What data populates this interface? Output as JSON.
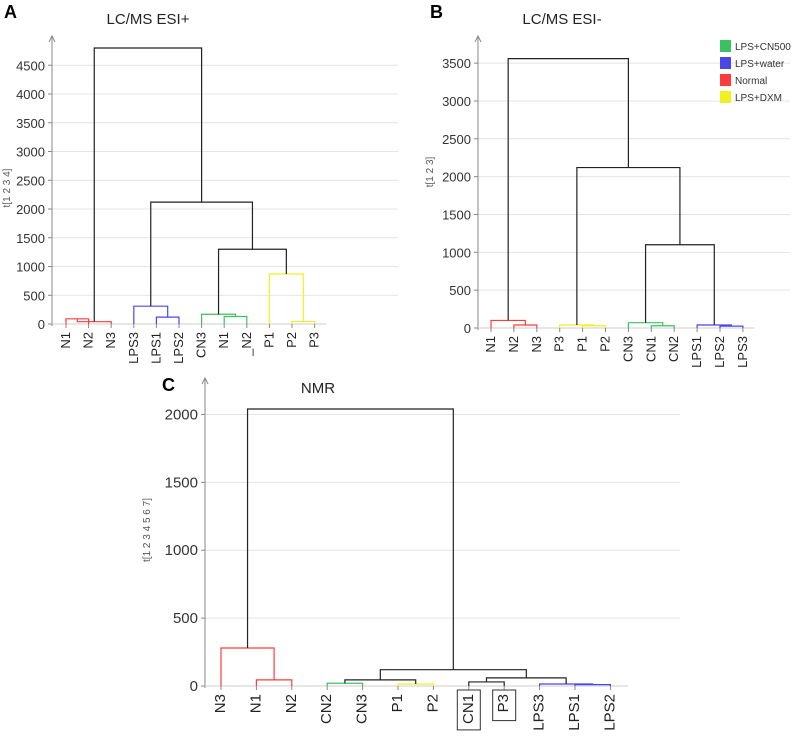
{
  "colors": {
    "Normal": "#ff3b3b",
    "LPS+water": "#4848e8",
    "LPS+CN500": "#3cc060",
    "LPS+DXM": "#f0f020",
    "link": "#222222",
    "grid": "#e4e4e4",
    "axis": "#888888"
  },
  "chart_data": [
    {
      "type": "dendrogram",
      "panel": "A",
      "title": "LC/MS ESI+",
      "ylabel": "t[1 2 3 4]",
      "ylim": [
        0,
        4800
      ],
      "yticks": [
        0,
        500,
        1000,
        1500,
        2000,
        2500,
        3000,
        3500,
        4000,
        4500
      ],
      "leaves": [
        "N1",
        "N2",
        "N3",
        "LPS3",
        "LPS1",
        "LPS2",
        "CN3",
        "N1",
        "_N2",
        "P1",
        "P2",
        "P3"
      ],
      "merges": [
        {
          "a": 0,
          "b": 1,
          "h": 90,
          "color": "Normal"
        },
        {
          "a": 12,
          "b": 2,
          "h": 40,
          "color": "Normal"
        },
        {
          "a": 4,
          "b": 5,
          "h": 120,
          "color": "LPS+water"
        },
        {
          "a": 3,
          "b": 14,
          "h": 310,
          "color": "LPS+water"
        },
        {
          "a": 7,
          "b": 8,
          "h": 130,
          "color": "LPS+CN500"
        },
        {
          "a": 6,
          "b": 16,
          "h": 170,
          "color": "LPS+CN500"
        },
        {
          "a": 10,
          "b": 11,
          "h": 45,
          "color": "LPS+DXM"
        },
        {
          "a": 9,
          "b": 18,
          "h": 870,
          "color": "LPS+DXM"
        },
        {
          "a": 17,
          "b": 19,
          "h": 1300,
          "color": "link"
        },
        {
          "a": 15,
          "b": 20,
          "h": 2120,
          "color": "link"
        },
        {
          "a": 13,
          "b": 21,
          "h": 4800,
          "color": "link"
        }
      ]
    },
    {
      "type": "dendrogram",
      "panel": "B",
      "title": "LC/MS ESI-",
      "ylabel": "t[1 2 3]",
      "ylim": [
        0,
        3700
      ],
      "yticks": [
        0,
        500,
        1000,
        1500,
        2000,
        2500,
        3000,
        3500
      ],
      "leaves": [
        "N1",
        "N2",
        "N3",
        "P3",
        "P1",
        "P2",
        "CN3",
        "CN1",
        "CN2",
        "LPS1",
        "LPS2",
        "LPS3"
      ],
      "merges": [
        {
          "a": 1,
          "b": 2,
          "h": 40,
          "color": "Normal"
        },
        {
          "a": 0,
          "b": 12,
          "h": 100,
          "color": "Normal"
        },
        {
          "a": 4,
          "b": 5,
          "h": 30,
          "color": "LPS+DXM"
        },
        {
          "a": 3,
          "b": 14,
          "h": 40,
          "color": "LPS+DXM"
        },
        {
          "a": 7,
          "b": 8,
          "h": 30,
          "color": "LPS+CN500"
        },
        {
          "a": 6,
          "b": 16,
          "h": 70,
          "color": "LPS+CN500"
        },
        {
          "a": 10,
          "b": 11,
          "h": 25,
          "color": "LPS+water"
        },
        {
          "a": 9,
          "b": 18,
          "h": 40,
          "color": "LPS+water"
        },
        {
          "a": 17,
          "b": 19,
          "h": 1100,
          "color": "link"
        },
        {
          "a": 15,
          "b": 20,
          "h": 2120,
          "color": "link"
        },
        {
          "a": 13,
          "b": 21,
          "h": 3560,
          "color": "link"
        }
      ],
      "legend": [
        {
          "label": "LPS+CN500",
          "color": "LPS+CN500"
        },
        {
          "label": "LPS+water",
          "color": "LPS+water"
        },
        {
          "label": "Normal",
          "color": "Normal"
        },
        {
          "label": "LPS+DXM",
          "color": "LPS+DXM"
        }
      ]
    },
    {
      "type": "dendrogram",
      "panel": "C",
      "title": "NMR",
      "ylabel": "t[1 2 3 4 5 6 7]",
      "ylim": [
        0,
        2180
      ],
      "yticks": [
        0,
        500,
        1000,
        1500,
        2000
      ],
      "leaves": [
        "N3",
        "N1",
        "N2",
        "CN2",
        "CN3",
        "P1",
        "P2",
        "CN1",
        "P3",
        "LPS3",
        "LPS1",
        "LPS2"
      ],
      "boxed": [
        "CN1",
        "P3"
      ],
      "merges": [
        {
          "a": 1,
          "b": 2,
          "h": 45,
          "color": "Normal"
        },
        {
          "a": 0,
          "b": 12,
          "h": 280,
          "color": "Normal"
        },
        {
          "a": 3,
          "b": 4,
          "h": 20,
          "color": "LPS+CN500"
        },
        {
          "a": 5,
          "b": 6,
          "h": 15,
          "color": "LPS+DXM"
        },
        {
          "a": 14,
          "b": 15,
          "h": 45,
          "color": "link"
        },
        {
          "a": 10,
          "b": 11,
          "h": 10,
          "color": "LPS+water"
        },
        {
          "a": 9,
          "b": 17,
          "h": 15,
          "color": "LPS+water"
        },
        {
          "a": 7,
          "b": 8,
          "h": 30,
          "color": "link"
        },
        {
          "a": 19,
          "b": 18,
          "h": 60,
          "color": "link"
        },
        {
          "a": 16,
          "b": 20,
          "h": 120,
          "color": "link"
        },
        {
          "a": 13,
          "b": 21,
          "h": 2040,
          "color": "link"
        }
      ]
    }
  ]
}
